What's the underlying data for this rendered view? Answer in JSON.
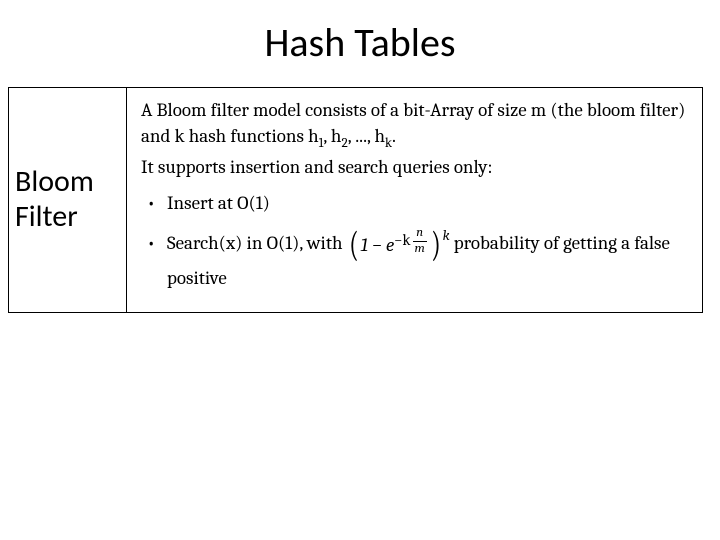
{
  "title": "Hash Tables",
  "table": {
    "left_label": "Bloom Filter",
    "desc_line1_pre": "A Bloom filter model consists of a bit-Array of size m (the bloom filter) and k hash functions h",
    "desc_line1_sub1": "1",
    "desc_line1_mid1": ", h",
    "desc_line1_sub2": "2",
    "desc_line1_mid2": ", ..., h",
    "desc_line1_sub3": "k",
    "desc_line1_end": ".",
    "desc_line2": "It supports insertion and search queries only:",
    "bullet1": "Insert at O(1)",
    "bullet2_pre": "Search(x) in O(1), with ",
    "formula": {
      "one_minus": "1 − ",
      "e": "e",
      "exp_minus_k": "−k",
      "frac_num": "n",
      "frac_den": "m",
      "outer_exp": "k"
    },
    "bullet2_post": " probability of getting a false positive"
  },
  "style": {
    "title_fontsize": 40,
    "left_fontsize": 30,
    "body_fontsize": 19,
    "background_color": "#ffffff",
    "text_color": "#000000",
    "border_color": "#000000",
    "title_font": "Calibri",
    "body_font": "Cambria"
  }
}
